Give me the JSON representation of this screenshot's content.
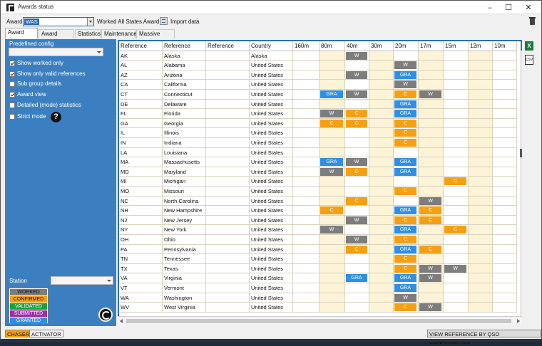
{
  "window": {
    "title": "Awards status"
  },
  "toolbar": {
    "award_label": "Award",
    "award_value": "WAS",
    "award_description": "Worked All States Award",
    "import_label": "Import data"
  },
  "tabs": [
    "Award view",
    "Award filters",
    "Statistics",
    "Maintenance",
    "Massive editor"
  ],
  "left": {
    "predefined_label": "Predefined config",
    "options": [
      {
        "label": "Show worked only",
        "checked": true
      },
      {
        "label": "Show only valid references",
        "checked": true
      },
      {
        "label": "Sub group details",
        "checked": false
      },
      {
        "label": "Award view",
        "checked": true
      },
      {
        "label": "Detailed (mode) statistics",
        "checked": false
      },
      {
        "label": "Strict mode",
        "checked": false
      }
    ],
    "help_glyph": "?",
    "station_label": "Station",
    "legend": [
      {
        "label": "WORKED",
        "color": "#7d7d7d"
      },
      {
        "label": "CONFIRMED",
        "color": "#f5a012"
      },
      {
        "label": "VALIDATED",
        "color": "#18a23c"
      },
      {
        "label": "SUBMITTED",
        "color": "#9a2fa8"
      },
      {
        "label": "GRANTED",
        "color": "#2e8fe6"
      }
    ]
  },
  "grid": {
    "columns": [
      "Reference",
      "Reference",
      "Reference",
      "Country",
      "160m",
      "80m",
      "40m",
      "30m",
      "20m",
      "17m",
      "15m",
      "12m",
      "10m"
    ],
    "rows": [
      {
        "ref": "AK",
        "name": "Alaska",
        "country": "Alaska",
        "bands": {
          "40m": "W"
        }
      },
      {
        "ref": "AL",
        "name": "Alabama",
        "country": "United States",
        "bands": {
          "20m": "W"
        }
      },
      {
        "ref": "AZ",
        "name": "Arizona",
        "country": "United States",
        "bands": {
          "40m": "W",
          "20m": "GRA"
        }
      },
      {
        "ref": "CA",
        "name": "California",
        "country": "United States",
        "bands": {
          "20m": "W"
        }
      },
      {
        "ref": "CT",
        "name": "Connecticut",
        "country": "United States",
        "bands": {
          "80m": "GRA",
          "40m": "W",
          "20m": "C",
          "17m": "W"
        }
      },
      {
        "ref": "DE",
        "name": "Delaware",
        "country": "United States",
        "bands": {
          "20m": "GRA"
        }
      },
      {
        "ref": "FL",
        "name": "Florida",
        "country": "United States",
        "bands": {
          "80m": "W",
          "40m": "C",
          "20m": "GRA"
        }
      },
      {
        "ref": "GA",
        "name": "Georgia",
        "country": "United States",
        "bands": {
          "80m": "C",
          "40m": "C",
          "20m": "C"
        }
      },
      {
        "ref": "IL",
        "name": "Illinois",
        "country": "United States",
        "bands": {
          "20m": "C"
        }
      },
      {
        "ref": "IN",
        "name": "Indiana",
        "country": "United States",
        "bands": {
          "20m": "C"
        }
      },
      {
        "ref": "LA",
        "name": "Louisiana",
        "country": "United States",
        "bands": {}
      },
      {
        "ref": "MA",
        "name": "Massachusetts",
        "country": "United States",
        "bands": {
          "80m": "GRA",
          "40m": "W",
          "20m": "GRA"
        }
      },
      {
        "ref": "MD",
        "name": "Maryland",
        "country": "United States",
        "bands": {
          "80m": "W",
          "40m": "C",
          "20m": "GRA"
        }
      },
      {
        "ref": "MI",
        "name": "Michigan",
        "country": "United States",
        "bands": {
          "15m": "C"
        }
      },
      {
        "ref": "MO",
        "name": "Missouri",
        "country": "United States",
        "bands": {
          "20m": "C"
        }
      },
      {
        "ref": "NC",
        "name": "North Carolina",
        "country": "United States",
        "bands": {
          "40m": "C",
          "17m": "W"
        }
      },
      {
        "ref": "NH",
        "name": "New Hampshire",
        "country": "United States",
        "bands": {
          "80m": "C",
          "20m": "GRA",
          "17m": "C"
        }
      },
      {
        "ref": "NJ",
        "name": "New Jersey",
        "country": "United States",
        "bands": {
          "40m": "W",
          "20m": "C",
          "17m": "C"
        }
      },
      {
        "ref": "NY",
        "name": "New York",
        "country": "United States",
        "bands": {
          "80m": "W",
          "20m": "GRA",
          "15m": "C"
        }
      },
      {
        "ref": "OH",
        "name": "Ohio",
        "country": "United States",
        "bands": {
          "40m": "W",
          "20m": "C"
        }
      },
      {
        "ref": "PA",
        "name": "Pennsylvania",
        "country": "United States",
        "bands": {
          "40m": "C",
          "20m": "GRA",
          "17m": "C"
        }
      },
      {
        "ref": "TN",
        "name": "Tennessee",
        "country": "United States",
        "bands": {
          "20m": "C"
        }
      },
      {
        "ref": "TX",
        "name": "Texas",
        "country": "United States",
        "bands": {
          "20m": "C",
          "17m": "W",
          "15m": "W"
        }
      },
      {
        "ref": "VA",
        "name": "Virginia",
        "country": "United States",
        "bands": {
          "40m": "GRA",
          "20m": "GRA",
          "17m": "W"
        }
      },
      {
        "ref": "VT",
        "name": "Vermont",
        "country": "United States",
        "bands": {
          "20m": "GRA"
        }
      },
      {
        "ref": "WA",
        "name": "Washington",
        "country": "United States",
        "bands": {
          "20m": "W"
        }
      },
      {
        "ref": "WV",
        "name": "West Virginia",
        "country": "United States",
        "bands": {
          "20m": "C",
          "17m": "W"
        }
      }
    ]
  },
  "status_colors": {
    "W": "#7d7d7d",
    "C": "#f5a012",
    "GRA": "#2e8fe6"
  },
  "icons": {
    "excel": "excel-icon",
    "csv": "csv-icon",
    "excel_glyph": "X",
    "csv_glyph": "CSV"
  },
  "statusbar": {
    "chaser": "CHASER",
    "activator": "ACTIVATOR",
    "view_ref": "VIEW REFERENCE BY QSO CONFIRMATION"
  }
}
